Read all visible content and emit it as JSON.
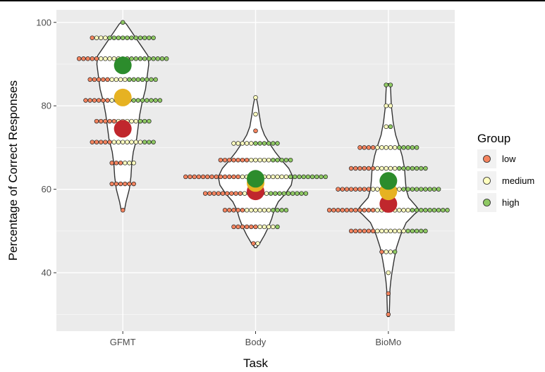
{
  "chart_data": {
    "type": "violin-dotplot",
    "xlabel": "Task",
    "ylabel": "Percentage of Correct Responses",
    "ylim": [
      26,
      103
    ],
    "yticks": [
      40,
      60,
      80,
      100
    ],
    "categories": [
      "GFMT",
      "Body",
      "BioMo"
    ],
    "legend": {
      "title": "Group",
      "placement": "right",
      "entries": [
        {
          "key": "low",
          "label": "low",
          "color": "#f4845f"
        },
        {
          "key": "medium",
          "label": "medium",
          "color": "#ffffbf"
        },
        {
          "key": "high",
          "label": "high",
          "color": "#8fc964"
        }
      ]
    },
    "mean_colors": {
      "low": "#c0272d",
      "medium": "#e6b222",
      "high": "#2c8c2c"
    },
    "violins": [
      {
        "category": "GFMT",
        "outline": [
          [
            55,
            0.1
          ],
          [
            57,
            0.2
          ],
          [
            60,
            0.4
          ],
          [
            63,
            0.5
          ],
          [
            66,
            0.55
          ],
          [
            69,
            0.65
          ],
          [
            72,
            0.85
          ],
          [
            75,
            0.95
          ],
          [
            78,
            1.05
          ],
          [
            81,
            1.2
          ],
          [
            84,
            1.4
          ],
          [
            87,
            1.5
          ],
          [
            90,
            1.6
          ],
          [
            92,
            1.55
          ],
          [
            94,
            1.2
          ],
          [
            96,
            0.85
          ],
          [
            98,
            0.5
          ],
          [
            99.6,
            0.22
          ],
          [
            100.2,
            0.05
          ]
        ],
        "dot_rows": [
          {
            "y": 100,
            "dots": [
              "high"
            ]
          },
          {
            "y": 96.3,
            "dots": [
              "low",
              "medium",
              "medium",
              "medium",
              "high",
              "high",
              "high",
              "high",
              "high",
              "high",
              "high",
              "high",
              "high",
              "high",
              "high"
            ]
          },
          {
            "y": 91.3,
            "dots": [
              "low",
              "low",
              "low",
              "low",
              "low",
              "medium",
              "medium",
              "medium",
              "medium",
              "medium",
              "medium",
              "high",
              "high",
              "high",
              "high",
              "high",
              "high",
              "high",
              "high",
              "high",
              "high"
            ]
          },
          {
            "y": 86.3,
            "dots": [
              "low",
              "low",
              "low",
              "low",
              "low",
              "medium",
              "medium",
              "medium",
              "medium",
              "high",
              "high",
              "high",
              "high",
              "high",
              "high",
              "high"
            ]
          },
          {
            "y": 81.3,
            "dots": [
              "low",
              "low",
              "low",
              "low",
              "low",
              "low",
              "medium",
              "medium",
              "medium",
              "medium",
              "medium",
              "high",
              "high",
              "high",
              "high",
              "high",
              "high",
              "high"
            ]
          },
          {
            "y": 76.3,
            "dots": [
              "low",
              "low",
              "low",
              "low",
              "low",
              "medium",
              "medium",
              "medium",
              "medium",
              "medium",
              "high",
              "high",
              "high"
            ]
          },
          {
            "y": 71.3,
            "dots": [
              "low",
              "low",
              "low",
              "low",
              "low",
              "medium",
              "medium",
              "medium",
              "medium",
              "medium",
              "medium",
              "medium",
              "high",
              "high",
              "high"
            ]
          },
          {
            "y": 66.3,
            "dots": [
              "low",
              "low",
              "low",
              "medium",
              "medium",
              "medium"
            ]
          },
          {
            "y": 61.3,
            "dots": [
              "low",
              "low",
              "low",
              "low",
              "low",
              "low"
            ]
          },
          {
            "y": 55,
            "dots": [
              "low"
            ]
          }
        ],
        "means": {
          "low": 74.5,
          "medium": 82,
          "high": 89.7
        }
      },
      {
        "category": "Body",
        "outline": [
          [
            46,
            0.05
          ],
          [
            47,
            0.25
          ],
          [
            49,
            0.55
          ],
          [
            51,
            0.8
          ],
          [
            53,
            1.0
          ],
          [
            55,
            1.15
          ],
          [
            57,
            1.4
          ],
          [
            59,
            1.85
          ],
          [
            61,
            2.2
          ],
          [
            63,
            2.3
          ],
          [
            65,
            2.05
          ],
          [
            67,
            1.6
          ],
          [
            69,
            1.2
          ],
          [
            71,
            0.85
          ],
          [
            73,
            0.55
          ],
          [
            75,
            0.35
          ],
          [
            78,
            0.22
          ],
          [
            80,
            0.15
          ],
          [
            82,
            0.05
          ]
        ],
        "dot_rows": [
          {
            "y": 82,
            "dots": [
              "medium"
            ]
          },
          {
            "y": 78,
            "dots": [
              "medium"
            ]
          },
          {
            "y": 74,
            "dots": [
              "low"
            ]
          },
          {
            "y": 71,
            "dots": [
              "medium",
              "medium",
              "medium",
              "medium",
              "medium",
              "high",
              "high",
              "high",
              "high",
              "high",
              "high"
            ]
          },
          {
            "y": 67,
            "dots": [
              "low",
              "low",
              "low",
              "low",
              "low",
              "low",
              "low",
              "medium",
              "medium",
              "medium",
              "medium",
              "medium",
              "high",
              "high",
              "high",
              "high",
              "high"
            ]
          },
          {
            "y": 63,
            "dots": [
              "low",
              "low",
              "low",
              "low",
              "low",
              "low",
              "low",
              "low",
              "low",
              "low",
              "low",
              "low",
              "low",
              "medium",
              "medium",
              "medium",
              "medium",
              "medium",
              "medium",
              "medium",
              "medium",
              "medium",
              "medium",
              "medium",
              "high",
              "high",
              "high",
              "high",
              "high",
              "high",
              "high",
              "high",
              "high"
            ]
          },
          {
            "y": 59,
            "dots": [
              "low",
              "low",
              "low",
              "low",
              "low",
              "low",
              "low",
              "low",
              "low",
              "medium",
              "medium",
              "medium",
              "medium",
              "medium",
              "medium",
              "high",
              "high",
              "high",
              "high",
              "high",
              "high",
              "high",
              "high",
              "high"
            ]
          },
          {
            "y": 55,
            "dots": [
              "low",
              "low",
              "low",
              "low",
              "low",
              "medium",
              "medium",
              "medium",
              "medium",
              "medium",
              "medium",
              "high",
              "high",
              "high",
              "high"
            ]
          },
          {
            "y": 51,
            "dots": [
              "low",
              "low",
              "low",
              "low",
              "low",
              "low",
              "medium",
              "medium",
              "medium",
              "medium",
              "high"
            ]
          },
          {
            "y": 47,
            "dots": [
              "low",
              "medium"
            ]
          }
        ],
        "means": {
          "low": 59.5,
          "medium": 61.5,
          "high": 62.5
        }
      },
      {
        "category": "BioMo",
        "outline": [
          [
            29.5,
            0.05
          ],
          [
            33,
            0.08
          ],
          [
            36,
            0.1
          ],
          [
            38,
            0.15
          ],
          [
            40,
            0.22
          ],
          [
            43,
            0.35
          ],
          [
            46,
            0.5
          ],
          [
            49,
            0.75
          ],
          [
            52,
            1.1
          ],
          [
            54,
            1.6
          ],
          [
            55,
            1.9
          ],
          [
            56,
            1.7
          ],
          [
            58,
            1.25
          ],
          [
            60,
            1.1
          ],
          [
            62,
            1.05
          ],
          [
            65,
            1.0
          ],
          [
            68,
            0.85
          ],
          [
            70,
            0.7
          ],
          [
            73,
            0.45
          ],
          [
            76,
            0.3
          ],
          [
            80,
            0.18
          ],
          [
            83,
            0.15
          ],
          [
            85.3,
            0.12
          ]
        ],
        "dot_rows": [
          {
            "y": 85,
            "dots": [
              "high",
              "high"
            ]
          },
          {
            "y": 80,
            "dots": [
              "medium",
              "medium"
            ]
          },
          {
            "y": 75,
            "dots": [
              "medium",
              "high"
            ]
          },
          {
            "y": 70,
            "dots": [
              "low",
              "low",
              "low",
              "low",
              "medium",
              "medium",
              "medium",
              "medium",
              "medium",
              "high",
              "high",
              "high",
              "high",
              "high"
            ]
          },
          {
            "y": 65,
            "dots": [
              "low",
              "low",
              "low",
              "low",
              "low",
              "low",
              "medium",
              "medium",
              "medium",
              "medium",
              "medium",
              "high",
              "high",
              "high",
              "high",
              "high",
              "high",
              "high"
            ]
          },
          {
            "y": 60,
            "dots": [
              "low",
              "low",
              "low",
              "low",
              "low",
              "low",
              "low",
              "low",
              "medium",
              "medium",
              "medium",
              "medium",
              "medium",
              "medium",
              "medium",
              "high",
              "high",
              "high",
              "high",
              "high",
              "high",
              "high",
              "high",
              "high"
            ]
          },
          {
            "y": 55,
            "dots": [
              "low",
              "low",
              "low",
              "low",
              "low",
              "low",
              "low",
              "low",
              "low",
              "low",
              "low",
              "medium",
              "medium",
              "medium",
              "medium",
              "medium",
              "medium",
              "medium",
              "medium",
              "high",
              "high",
              "high",
              "high",
              "high",
              "high",
              "high",
              "high",
              "high"
            ]
          },
          {
            "y": 50,
            "dots": [
              "low",
              "low",
              "low",
              "low",
              "low",
              "low",
              "medium",
              "medium",
              "medium",
              "medium",
              "medium",
              "medium",
              "medium",
              "high",
              "high",
              "high",
              "high",
              "high"
            ]
          },
          {
            "y": 45,
            "dots": [
              "low",
              "medium",
              "medium",
              "high"
            ]
          },
          {
            "y": 40,
            "dots": [
              "medium"
            ]
          },
          {
            "y": 35,
            "dots": [
              "low"
            ]
          },
          {
            "y": 30,
            "dots": [
              "low"
            ]
          }
        ],
        "means": {
          "low": 56.5,
          "medium": 59.5,
          "high": 62
        }
      }
    ]
  }
}
